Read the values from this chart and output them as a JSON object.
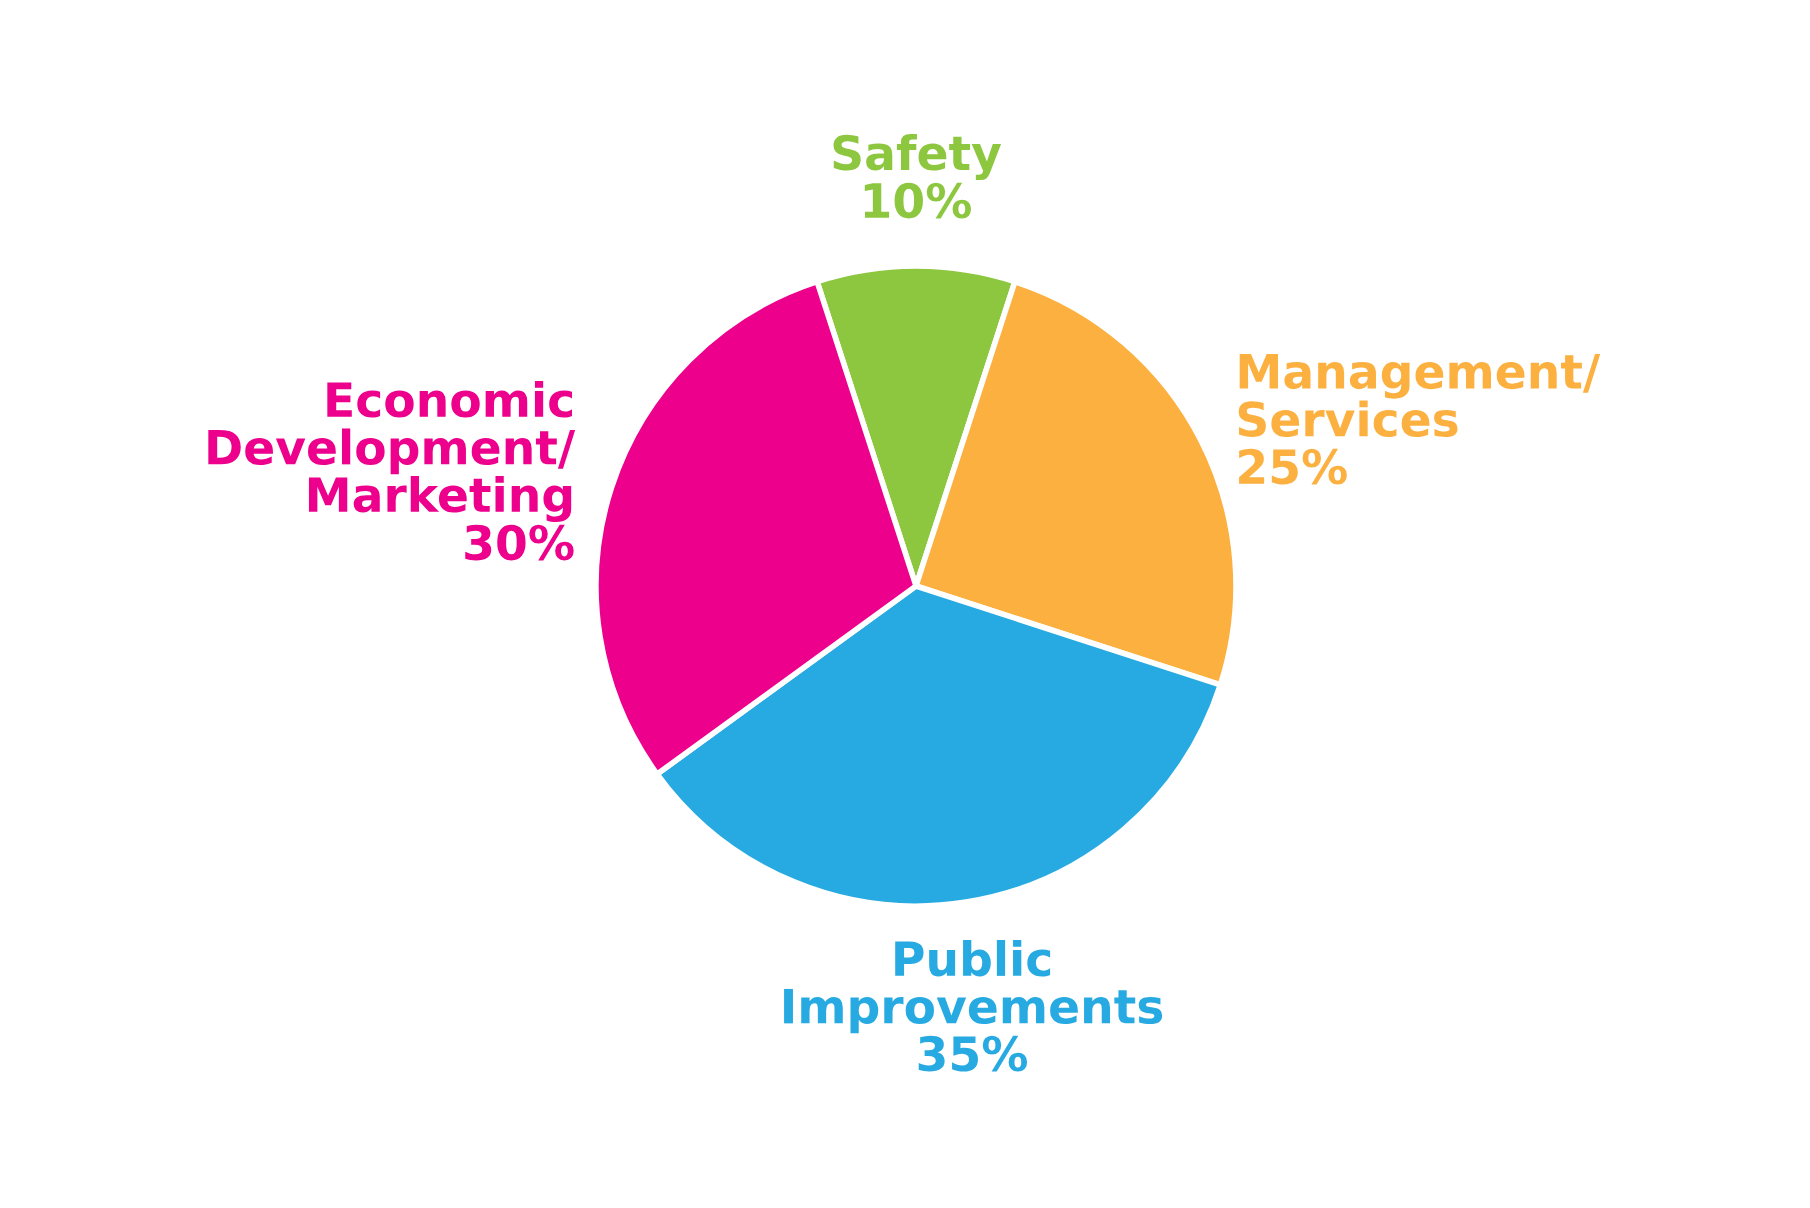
{
  "chart_data": {
    "type": "pie",
    "categories": [
      "Safety",
      "Management/\nServices",
      "Public\nImprovements",
      "Economic\nDevelopment/\nMarketing"
    ],
    "values": [
      10,
      25,
      35,
      30
    ],
    "value_labels": [
      "10%",
      "25%",
      "35%",
      "30%"
    ],
    "colors": [
      "#8dc63f",
      "#fbb040",
      "#27aae1",
      "#ec008c"
    ]
  }
}
